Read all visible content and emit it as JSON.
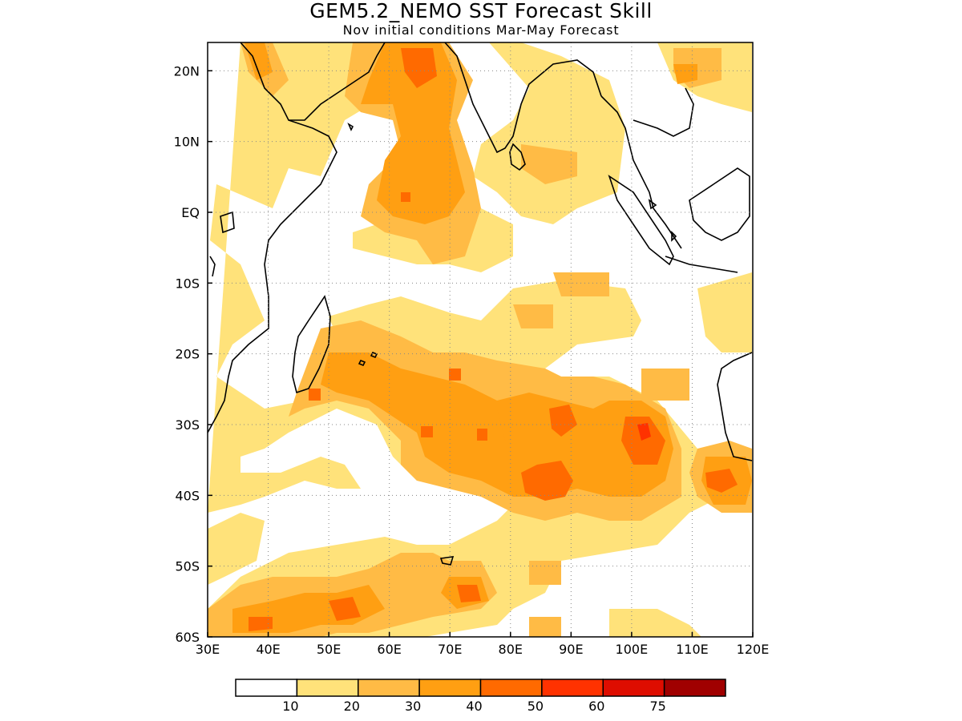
{
  "title": "GEM5.2_NEMO SST Forecast Skill",
  "subtitle": "Nov initial conditions  Mar-May Forecast",
  "map": {
    "lon_range": [
      30,
      120
    ],
    "lat_range": [
      -60,
      24
    ],
    "lon_ticks": [
      30,
      40,
      50,
      60,
      70,
      80,
      90,
      100,
      110,
      120
    ],
    "lon_tick_labels": [
      "30E",
      "40E",
      "50E",
      "60E",
      "70E",
      "80E",
      "90E",
      "100E",
      "110E",
      "120E"
    ],
    "lat_ticks": [
      20,
      10,
      0,
      -10,
      -20,
      -30,
      -40,
      -50,
      -60
    ],
    "lat_tick_labels": [
      "20N",
      "10N",
      "EQ",
      "10S",
      "20S",
      "30S",
      "40S",
      "50S",
      "60S"
    ],
    "gridlines": "dotted"
  },
  "colorbar": {
    "levels": [
      "10",
      "20",
      "30",
      "40",
      "50",
      "60",
      "75"
    ],
    "colors": [
      "#ffffff",
      "#ffe27a",
      "#ffbb45",
      "#ff9f12",
      "#ff6a00",
      "#ff3200",
      "#de0d00",
      "#a00000"
    ]
  }
}
